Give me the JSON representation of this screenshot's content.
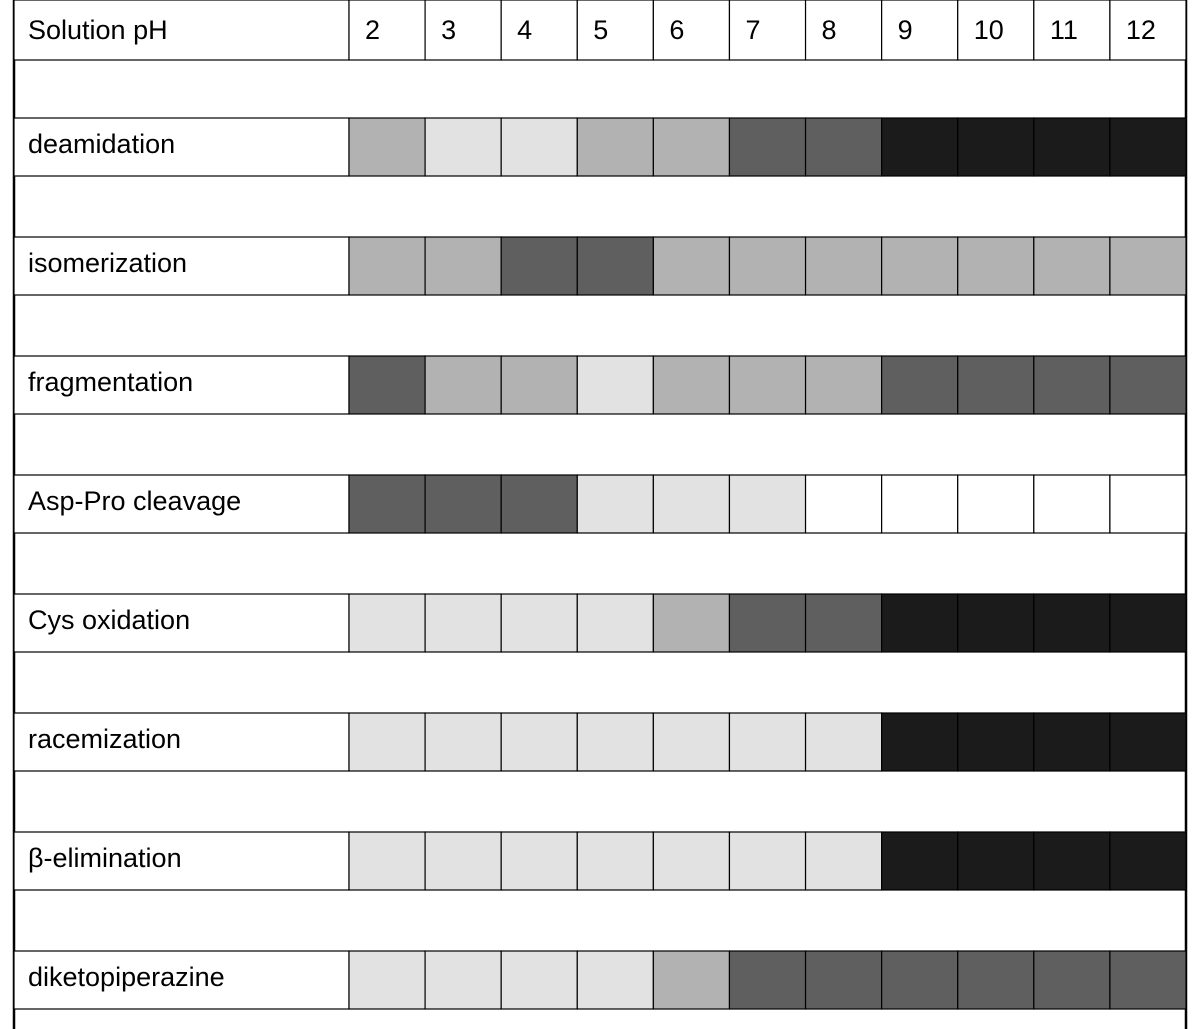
{
  "chart_data": {
    "type": "heatmap",
    "title": "",
    "header_label": "Solution pH",
    "x": [
      2,
      3,
      4,
      5,
      6,
      7,
      8,
      9,
      10,
      11,
      12
    ],
    "level_colors": {
      "0": "#ffffff",
      "1": "#e2e2e2",
      "2": "#b2b2b2",
      "3": "#5f5f5f",
      "4": "#1b1b1b"
    },
    "rows": [
      {
        "label": "deamidation",
        "levels": [
          2,
          1,
          1,
          2,
          2,
          3,
          3,
          4,
          4,
          4,
          4
        ]
      },
      {
        "label": "isomerization",
        "levels": [
          2,
          2,
          3,
          3,
          2,
          2,
          2,
          2,
          2,
          2,
          2
        ]
      },
      {
        "label": "fragmentation",
        "levels": [
          3,
          2,
          2,
          1,
          2,
          2,
          2,
          3,
          3,
          3,
          3
        ]
      },
      {
        "label": "Asp-Pro cleavage",
        "levels": [
          3,
          3,
          3,
          1,
          1,
          1,
          0,
          0,
          0,
          0,
          0
        ]
      },
      {
        "label": "Cys oxidation",
        "levels": [
          1,
          1,
          1,
          1,
          2,
          3,
          3,
          4,
          4,
          4,
          4
        ]
      },
      {
        "label": "racemization",
        "levels": [
          1,
          1,
          1,
          1,
          1,
          1,
          1,
          4,
          4,
          4,
          4
        ]
      },
      {
        "label": "β-elimination",
        "levels": [
          1,
          1,
          1,
          1,
          1,
          1,
          1,
          4,
          4,
          4,
          4
        ]
      },
      {
        "label": "diketopiperazine",
        "levels": [
          1,
          1,
          1,
          1,
          2,
          3,
          3,
          3,
          3,
          3,
          3
        ]
      }
    ]
  }
}
